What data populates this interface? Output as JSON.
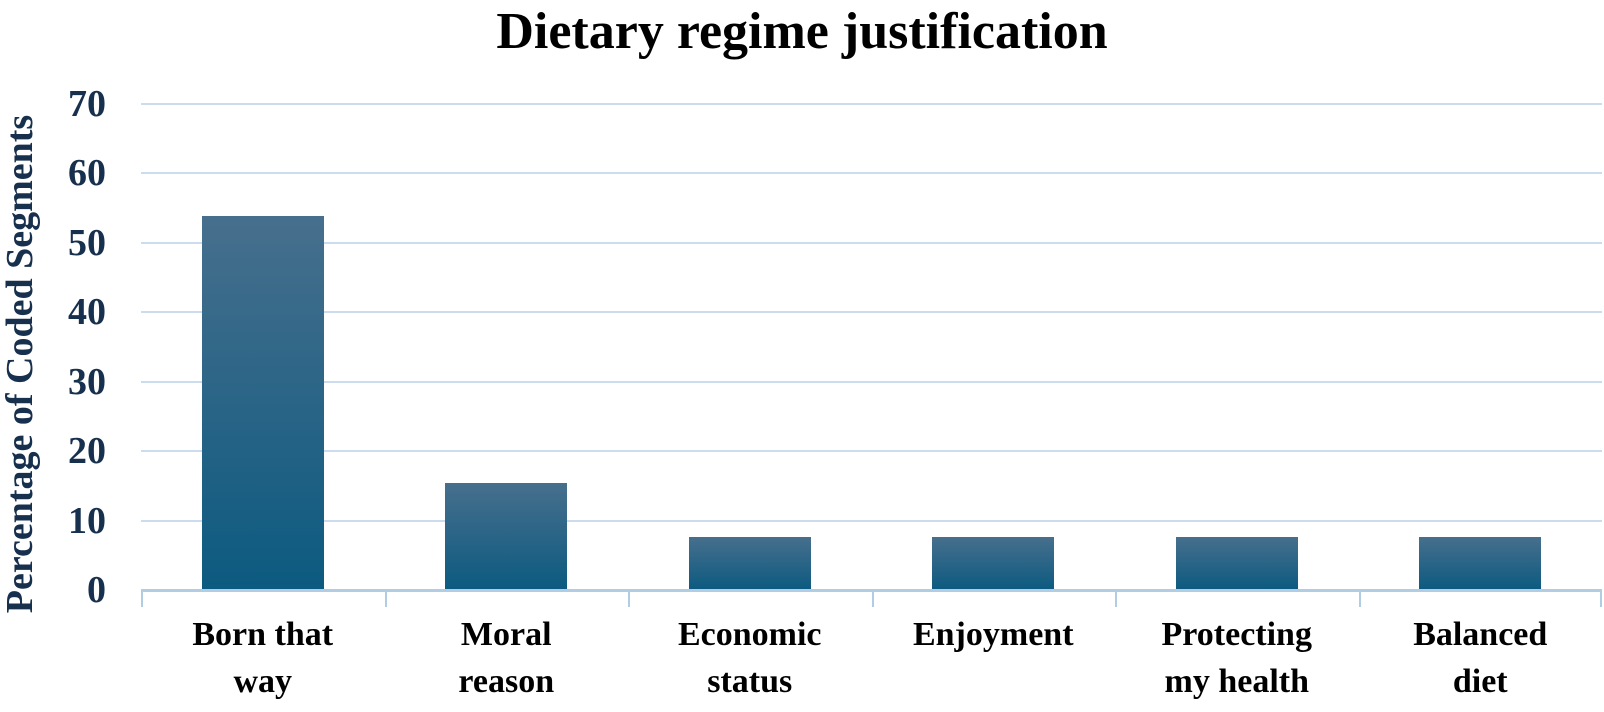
{
  "chart_data": {
    "type": "bar",
    "title": "Dietary regime justification",
    "ylabel": "Percentage of Coded Segments",
    "xlabel": "",
    "categories": [
      "Born that way",
      "Moral reason",
      "Economic status",
      "Enjoyment",
      "Protecting my health",
      "Balanced diet"
    ],
    "categories_display": [
      "Born that\nway",
      "Moral\nreason",
      "Economic\nstatus",
      "Enjoyment",
      "Protecting\nmy health",
      "Balanced\ndiet"
    ],
    "values": [
      53.8,
      15.4,
      7.7,
      7.7,
      7.7,
      7.7
    ],
    "ylim": [
      0,
      70
    ],
    "yticks": [
      0,
      10,
      20,
      30,
      40,
      50,
      60,
      70
    ],
    "grid": "horizontal-only",
    "legend": "none",
    "colors": {
      "bar_gradient_top": "#476f8d",
      "bar_gradient_bottom": "#0c5a80",
      "gridline": "#cadcee",
      "axis_line": "#b2cce4",
      "tick_label": "#17304d",
      "title": "#000000",
      "category_label": "#000000",
      "background": "#ffffff"
    }
  },
  "layout_note_values_visible_only": "no data labels shown on bars"
}
